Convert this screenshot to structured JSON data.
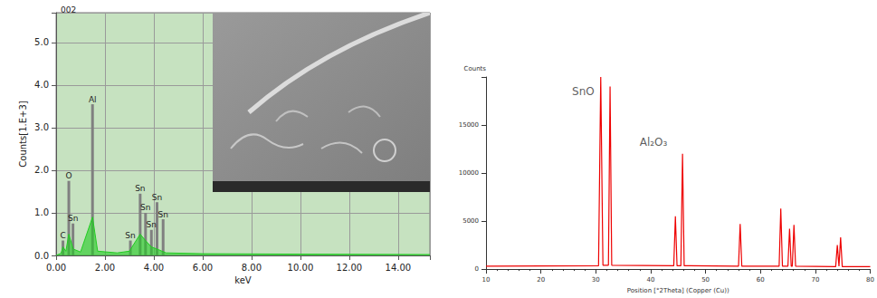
{
  "chart_data": [
    {
      "type": "spectrum",
      "title": "002",
      "xlabel": "keV",
      "ylabel": "Counts[1.E+3]",
      "xlim": [
        0,
        15.3
      ],
      "ylim": [
        0,
        5.7
      ],
      "xticks": [
        {
          "value": 0,
          "label": "0.00"
        },
        {
          "value": 2,
          "label": "2.00"
        },
        {
          "value": 4,
          "label": "4.00"
        },
        {
          "value": 6,
          "label": "6.00"
        },
        {
          "value": 8,
          "label": "8.00"
        },
        {
          "value": 10,
          "label": "10.00"
        },
        {
          "value": 12,
          "label": "12.00"
        },
        {
          "value": 14,
          "label": "14.00"
        }
      ],
      "yticks": [
        {
          "value": 0,
          "label": "0.0"
        },
        {
          "value": 1,
          "label": "1.0"
        },
        {
          "value": 2,
          "label": "2.0"
        },
        {
          "value": 3,
          "label": "3.0"
        },
        {
          "value": 4,
          "label": "4.0"
        },
        {
          "value": 5,
          "label": "5.0"
        }
      ],
      "grid": true,
      "spectrum": {
        "color": "#22cc22",
        "x": [
          0,
          0.2,
          0.28,
          0.4,
          0.52,
          0.7,
          1.0,
          1.49,
          1.7,
          2.5,
          3.0,
          3.44,
          3.66,
          3.9,
          4.13,
          4.5,
          6,
          10,
          15.3
        ],
        "values": [
          0,
          0.05,
          0.2,
          0.1,
          0.5,
          0.15,
          0.08,
          0.9,
          0.1,
          0.06,
          0.1,
          0.5,
          0.35,
          0.2,
          0.15,
          0.06,
          0.04,
          0.03,
          0.02
        ]
      },
      "peaks": {
        "color": "#808080",
        "labels": [
          "C",
          "O",
          "Sn",
          "Al",
          "Sn",
          "Sn",
          "Sn",
          "Sn",
          "Sn",
          "Sn"
        ],
        "x": [
          0.28,
          0.52,
          0.69,
          1.49,
          3.04,
          3.44,
          3.66,
          3.9,
          4.13,
          4.38
        ],
        "values": [
          0.35,
          1.75,
          0.75,
          3.55,
          0.35,
          1.45,
          1.0,
          0.6,
          1.25,
          0.85
        ]
      }
    },
    {
      "type": "line",
      "xlabel": "Position [°2Theta] (Copper (Cu))",
      "ylabel": "Counts",
      "xlim": [
        10,
        80
      ],
      "xticks": [
        10,
        20,
        30,
        40,
        50,
        60,
        70,
        80
      ],
      "ylim": [
        0,
        20000
      ],
      "yticks": [
        0,
        5000,
        10000,
        15000
      ],
      "grid": false,
      "color": "#ee0000",
      "x": [
        10,
        30.5,
        30.9,
        31.3,
        32.3,
        32.6,
        32.9,
        44.2,
        44.5,
        44.8,
        45.5,
        45.8,
        46.1,
        56.0,
        56.3,
        56.6,
        63.4,
        63.7,
        64.0,
        65.0,
        65.3,
        65.6,
        65.8,
        66.1,
        66.4,
        73.7,
        74.0,
        74.3,
        74.4,
        74.6,
        74.9,
        80
      ],
      "values": [
        300,
        350,
        20000,
        400,
        400,
        19000,
        400,
        350,
        5500,
        350,
        350,
        12000,
        350,
        300,
        4700,
        300,
        300,
        6300,
        300,
        300,
        4200,
        300,
        300,
        4600,
        300,
        250,
        2500,
        300,
        300,
        3300,
        250,
        250
      ],
      "annotations": [
        {
          "text": "SnO",
          "x": 27.7,
          "y": 18500
        },
        {
          "text": "Al₂O₃",
          "x": 40.5,
          "y": 13200
        }
      ]
    }
  ]
}
